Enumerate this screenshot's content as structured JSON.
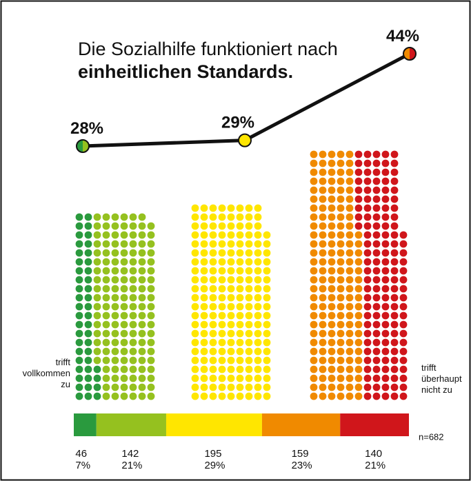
{
  "title_line1": "Die Sozialhilfe funktioniert nach",
  "title_line2": "einheitlichen Standards.",
  "chart_data": {
    "type": "dot-matrix",
    "values": [
      46,
      142,
      195,
      159,
      140
    ],
    "percents": [
      {
        "value": 7,
        "label": "7%"
      },
      {
        "value": 21,
        "label": "21%"
      },
      {
        "value": 29,
        "label": "29%"
      },
      {
        "value": 23,
        "label": "23%"
      },
      {
        "value": 21,
        "label": "21%"
      }
    ],
    "colors": [
      "#2a9a3e",
      "#95c11f",
      "#ffe600",
      "#f08a00",
      "#d0161b"
    ],
    "summary": {
      "values": [
        28,
        29,
        44
      ],
      "value_labels": [
        "28%",
        "29%",
        "44%"
      ]
    },
    "left_label": [
      "trifft",
      "vollkommen",
      "zu"
    ],
    "right_label": [
      "trifft",
      "überhaupt",
      "nicht zu"
    ],
    "n_label": "n=682"
  }
}
